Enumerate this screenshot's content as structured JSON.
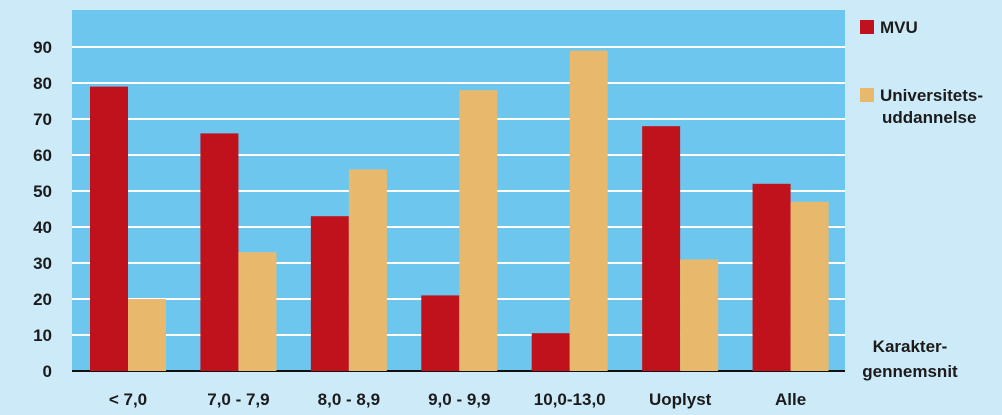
{
  "chart_data": {
    "type": "bar",
    "categories": [
      "< 7,0",
      "7,0 - 7,9",
      "8,0 - 8,9",
      "9,0 - 9,9",
      "10,0-13,0",
      "Uoplyst",
      "Alle"
    ],
    "series": [
      {
        "name": "MVU",
        "values": [
          79,
          66,
          43,
          21,
          10.5,
          68,
          52
        ],
        "color": "#c0121c"
      },
      {
        "name": "Universitets-uddannelse",
        "values": [
          20,
          33,
          56,
          78,
          89,
          31,
          47
        ],
        "color": "#e8b96c"
      }
    ],
    "legend_lines": [
      [
        "MVU"
      ],
      [
        "Universitets-",
        "uddannelse"
      ]
    ],
    "xlabel": "Karakter-gennemsnit",
    "xlabel_lines": [
      "Karakter-",
      "gennemsnit"
    ],
    "y_ticks": [
      "0",
      "10",
      "20",
      "30",
      "40",
      "50",
      "60",
      "70",
      "80",
      "90"
    ],
    "ylim": [
      0,
      100
    ],
    "grid": true,
    "legend_position": "right",
    "colors": {
      "plot_background": "#6cc6ee",
      "page_background": "#cdeaf8",
      "gridline": "#ffffff"
    }
  }
}
